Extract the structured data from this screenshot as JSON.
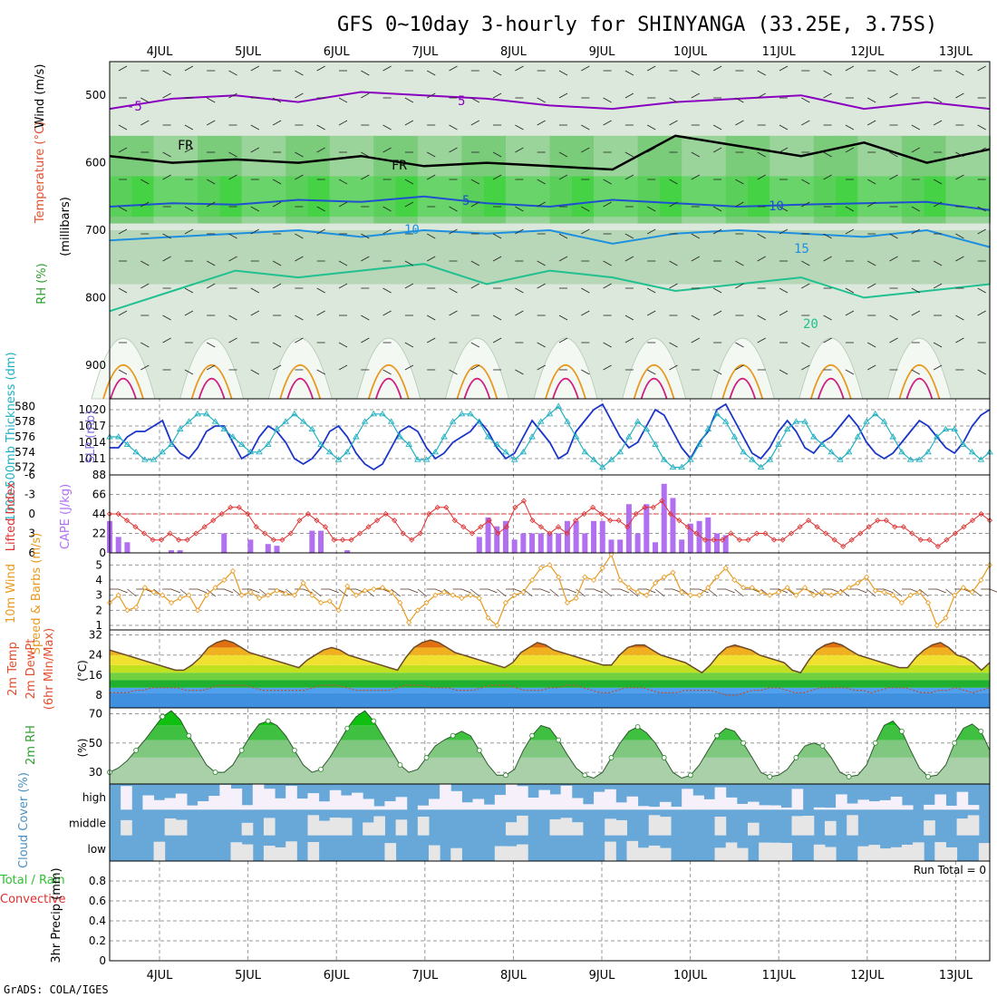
{
  "title": "GFS 0~10day 3-hourly for SHINYANGA (33.25E, 3.75S)",
  "footer": "GrADS: COLA/IGES",
  "dates": [
    "4JUL",
    "5JUL",
    "6JUL",
    "7JUL",
    "8JUL",
    "9JUL",
    "10JUL",
    "11JUL",
    "12JUL",
    "13JUL"
  ],
  "chart_data": [
    {
      "panel": "upper-air",
      "type": "heatmap",
      "ylabel": "(millibars)",
      "ylabels": [
        "RH (%)",
        "Temperature (°C)",
        "Wind (m/s)"
      ],
      "yticks": [
        500,
        600,
        700,
        800,
        900
      ],
      "ylim": [
        950,
        450
      ],
      "contour_labels": [
        "-5",
        "FR",
        "FR",
        "5",
        "5",
        "10",
        "10",
        "15",
        "20"
      ],
      "isotherms": [
        {
          "name": "-5",
          "color": "#8a00c0",
          "p": [
            520,
            505,
            500,
            510,
            495,
            500,
            505,
            515,
            520,
            510,
            505,
            500,
            520,
            510,
            520
          ]
        },
        {
          "name": "FR",
          "color": "#000000",
          "p": [
            590,
            600,
            595,
            600,
            590,
            605,
            600,
            605,
            610,
            560,
            575,
            590,
            570,
            600,
            580
          ]
        },
        {
          "name": "5",
          "color": "#1f50d0",
          "p": [
            665,
            660,
            662,
            655,
            658,
            650,
            660,
            665,
            655,
            660,
            665,
            662,
            660,
            658,
            670
          ]
        },
        {
          "name": "10",
          "color": "#1e90e0",
          "p": [
            715,
            710,
            705,
            700,
            710,
            700,
            705,
            700,
            720,
            705,
            700,
            705,
            710,
            700,
            725
          ]
        },
        {
          "name": "15",
          "color": "#20c090",
          "p": [
            820,
            790,
            760,
            770,
            760,
            750,
            780,
            760,
            770,
            790,
            780,
            770,
            800,
            790,
            780
          ]
        }
      ]
    },
    {
      "panel": "thickness-slp",
      "type": "line",
      "ylabels": [
        "1000-500mb Thickness (dm)",
        "SLP (mb)"
      ],
      "y1ticks": [
        572,
        574,
        576,
        578,
        580
      ],
      "y2ticks": [
        1011,
        1014,
        1017,
        1020
      ],
      "series": [
        {
          "name": "SLP (mb)",
          "color": "#1a35c8",
          "values": [
            1013,
            1013,
            1015,
            1016,
            1016,
            1017,
            1018,
            1014,
            1012,
            1011,
            1013,
            1016,
            1017,
            1017,
            1014,
            1011,
            1012,
            1015,
            1017,
            1016,
            1014,
            1011,
            1010,
            1011,
            1013,
            1016,
            1017,
            1015,
            1012,
            1010,
            1009,
            1010,
            1013,
            1016,
            1017,
            1016,
            1013,
            1011,
            1012,
            1014,
            1015,
            1016,
            1018,
            1016,
            1013,
            1011,
            1012,
            1015,
            1018,
            1016,
            1014,
            1011,
            1012,
            1016,
            1018,
            1020,
            1021,
            1018,
            1015,
            1013,
            1014,
            1017,
            1020,
            1019,
            1016,
            1013,
            1011,
            1014,
            1016,
            1020,
            1021,
            1018,
            1015,
            1012,
            1011,
            1013,
            1016,
            1018,
            1016,
            1013,
            1012,
            1014,
            1015,
            1017,
            1019,
            1017,
            1014,
            1012,
            1011,
            1012,
            1014,
            1016,
            1018,
            1017,
            1015,
            1013,
            1012,
            1014,
            1017,
            1019,
            1020
          ]
        },
        {
          "name": "1000-500mb Thickness (dm)",
          "color": "#20b0c0",
          "marker": "triangle",
          "values": [
            576,
            576,
            575,
            574,
            573,
            573,
            574,
            575,
            577,
            578,
            579,
            579,
            578,
            577,
            576,
            575,
            574,
            574,
            575,
            577,
            578,
            579,
            578,
            577,
            575,
            574,
            573,
            574,
            576,
            578,
            579,
            579,
            578,
            576,
            575,
            573,
            573,
            574,
            576,
            578,
            579,
            579,
            578,
            576,
            575,
            574,
            573,
            574,
            576,
            578,
            579,
            580,
            578,
            576,
            574,
            573,
            572,
            573,
            574,
            576,
            578,
            577,
            575,
            573,
            572,
            572,
            573,
            575,
            577,
            579,
            578,
            576,
            574,
            573,
            572,
            573,
            575,
            577,
            578,
            578,
            576,
            575,
            574,
            573,
            574,
            576,
            578,
            579,
            578,
            576,
            574,
            573,
            573,
            574,
            576,
            577,
            577,
            575,
            574,
            573,
            574
          ]
        }
      ]
    },
    {
      "panel": "lifted-cape",
      "type": "bar",
      "ylabels": [
        "Lifted Index",
        "CAPE (J/kg)"
      ],
      "y1ticks": [
        -6,
        -3,
        0,
        3,
        6
      ],
      "y2ticks": [
        0,
        22,
        44,
        66,
        88
      ],
      "series": [
        {
          "name": "CAPE (J/kg)",
          "color": "#b070f0",
          "values": [
            36,
            18,
            12,
            0,
            0,
            0,
            0,
            3,
            3,
            0,
            0,
            0,
            0,
            22,
            0,
            0,
            15,
            0,
            10,
            8,
            0,
            0,
            0,
            25,
            25,
            0,
            0,
            3,
            0,
            0,
            0,
            0,
            0,
            0,
            0,
            0,
            0,
            0,
            0,
            0,
            0,
            0,
            18,
            40,
            30,
            36,
            15,
            22,
            22,
            22,
            22,
            22,
            36,
            36,
            22,
            36,
            36,
            15,
            15,
            55,
            22,
            55,
            12,
            78,
            62,
            15,
            33,
            36,
            40,
            22,
            20,
            0,
            0,
            0,
            0,
            0,
            0,
            0,
            0,
            0,
            0,
            0,
            0,
            0,
            0,
            0,
            0,
            0,
            0,
            0,
            0,
            0,
            0,
            0,
            0,
            0,
            0,
            0,
            0,
            0,
            0
          ]
        },
        {
          "name": "Lifted Index",
          "color": "#e03030",
          "marker": "diamond",
          "values": [
            0,
            0,
            1,
            2,
            3,
            4,
            4,
            3,
            4,
            4,
            3,
            2,
            1,
            0,
            -1,
            -1,
            0,
            2,
            3,
            4,
            4,
            3,
            1,
            0,
            1,
            2,
            4,
            4,
            4,
            3,
            2,
            1,
            0,
            1,
            3,
            4,
            3,
            0,
            -1,
            -1,
            1,
            2,
            3,
            2,
            1,
            3,
            2,
            -1,
            -2,
            1,
            2,
            3,
            2,
            3,
            1,
            0,
            -1,
            0,
            1,
            1,
            2,
            0,
            -1,
            -1,
            -2,
            0,
            1,
            2,
            3,
            4,
            4,
            4,
            3,
            4,
            4,
            3,
            3,
            4,
            4,
            3,
            2,
            1,
            2,
            3,
            4,
            5,
            4,
            3,
            2,
            1,
            1,
            2,
            2,
            3,
            4,
            4,
            5,
            4,
            3,
            2,
            1,
            0,
            1
          ]
        }
      ]
    },
    {
      "panel": "wind-10m",
      "type": "line",
      "ylabels": [
        "10m Wind",
        "Speed & Barbs (m/s)"
      ],
      "yticks": [
        1,
        2,
        3,
        4,
        5
      ],
      "series": [
        {
          "name": "10m Wind Speed (m/s)",
          "color": "#e89a20",
          "marker": "diamond",
          "values": [
            2.5,
            3.0,
            2.0,
            2.2,
            3.5,
            3.2,
            3.0,
            2.5,
            2.8,
            3.0,
            2.0,
            3.0,
            3.5,
            4.0,
            4.6,
            3.0,
            3.2,
            2.8,
            3.0,
            3.3,
            3.1,
            3.0,
            3.8,
            3.0,
            2.5,
            2.6,
            2.0,
            3.6,
            3.0,
            3.3,
            3.4,
            3.5,
            3.2,
            2.5,
            1.2,
            2.0,
            2.5,
            3.0,
            3.2,
            3.0,
            2.8,
            3.0,
            2.8,
            1.5,
            1.0,
            2.5,
            3.0,
            3.2,
            4.0,
            4.8,
            5.0,
            4.2,
            2.5,
            2.8,
            4.2,
            4.0,
            4.8,
            5.7,
            4.0,
            3.5,
            3.2,
            3.0,
            3.8,
            4.2,
            4.5,
            3.2,
            3.0,
            3.0,
            3.5,
            4.2,
            4.8,
            4.0,
            3.5,
            3.5,
            3.2,
            3.0,
            3.2,
            3.5,
            3.0,
            3.5,
            3.0,
            3.2,
            3.0,
            3.2,
            3.5,
            3.8,
            4.2,
            3.3,
            3.2,
            3.0,
            2.5,
            3.0,
            3.2,
            2.5,
            1.0,
            1.5,
            3.0,
            3.5,
            3.2,
            4.0,
            5.0
          ]
        }
      ]
    },
    {
      "panel": "temp-2m",
      "type": "area",
      "ylabels": [
        "2m Temp",
        "2m DewPt",
        "(6hr Min/Max)"
      ],
      "yunit": "(°C)",
      "yticks": [
        8,
        16,
        24,
        32
      ],
      "series": [
        {
          "name": "2m Temp (°C)",
          "color": "#6b4a2a",
          "values": [
            26,
            25,
            24,
            23,
            22,
            21,
            20,
            19,
            18,
            18,
            20,
            23,
            27,
            29,
            30,
            29,
            27,
            25,
            24,
            23,
            22,
            21,
            20,
            19,
            22,
            24,
            26,
            27,
            26,
            24,
            23,
            22,
            21,
            20,
            19,
            18,
            23,
            27,
            29,
            30,
            29,
            27,
            25,
            24,
            23,
            22,
            21,
            20,
            19,
            21,
            25,
            27,
            29,
            28,
            26,
            25,
            24,
            23,
            22,
            21,
            20,
            20,
            24,
            27,
            28,
            28,
            26,
            24,
            23,
            22,
            21,
            19,
            17,
            20,
            24,
            27,
            28,
            27,
            26,
            24,
            23,
            22,
            21,
            18,
            17,
            22,
            26,
            28,
            29,
            28,
            26,
            24,
            23,
            22,
            21,
            20,
            19,
            19,
            23,
            26,
            28,
            29,
            27,
            24,
            23,
            21,
            18,
            21
          ]
        },
        {
          "name": "2m DewPt (°C)",
          "color": "#c05030",
          "values": [
            9,
            9,
            9,
            10,
            10,
            11,
            11,
            11,
            11,
            10,
            10,
            10,
            11,
            12,
            12,
            12,
            12,
            11,
            10,
            10,
            10,
            10,
            10,
            10,
            11,
            12,
            12,
            12,
            11,
            10,
            10,
            10,
            10,
            10,
            11,
            12,
            12,
            12,
            11,
            11,
            11,
            10,
            10,
            10,
            11,
            12,
            12,
            12,
            11,
            10,
            10,
            10,
            11,
            11,
            12,
            12,
            11,
            10,
            9,
            9,
            10,
            11,
            11,
            11,
            10,
            9,
            9,
            9,
            10,
            10,
            10,
            10,
            9,
            8,
            8,
            9,
            10,
            10,
            11,
            11,
            10,
            9,
            9,
            10,
            11,
            11,
            11,
            11,
            10,
            10,
            9,
            10,
            11,
            11,
            11,
            10,
            9,
            9,
            10,
            10,
            11,
            10,
            9,
            10,
            11
          ]
        }
      ]
    },
    {
      "panel": "rh-2m",
      "type": "area",
      "ylabels": [
        "2m RH"
      ],
      "yunit": "(%)",
      "yticks": [
        30,
        50,
        70
      ],
      "series": [
        {
          "name": "2m RH (%)",
          "color": "#30a030",
          "values": [
            30,
            33,
            38,
            45,
            52,
            60,
            68,
            72,
            66,
            55,
            45,
            35,
            30,
            30,
            35,
            45,
            55,
            63,
            65,
            62,
            55,
            45,
            35,
            30,
            32,
            40,
            50,
            60,
            68,
            72,
            65,
            55,
            45,
            35,
            30,
            32,
            40,
            48,
            52,
            55,
            58,
            55,
            45,
            35,
            28,
            28,
            32,
            45,
            55,
            62,
            60,
            52,
            42,
            33,
            28,
            26,
            30,
            40,
            50,
            58,
            61,
            57,
            50,
            40,
            30,
            26,
            28,
            35,
            45,
            55,
            60,
            58,
            50,
            40,
            30,
            27,
            28,
            32,
            40,
            48,
            50,
            48,
            40,
            30,
            27,
            28,
            35,
            50,
            62,
            65,
            58,
            45,
            33,
            27,
            28,
            35,
            50,
            60,
            63,
            58,
            45
          ]
        }
      ]
    },
    {
      "panel": "cloud-cover",
      "type": "heatmap",
      "ylabels": [
        "Cloud Cover (%)"
      ],
      "rows": [
        "high",
        "middle",
        "low"
      ]
    },
    {
      "panel": "precip",
      "type": "bar",
      "ylabels": [
        "3hr Precip (mm)"
      ],
      "side_labels": [
        "Total / Rain",
        "Convective"
      ],
      "yticks": [
        0,
        0.2,
        0.4,
        0.6,
        0.8
      ],
      "ylim": [
        0,
        1.0
      ],
      "annotation": "Run Total = 0",
      "values": []
    }
  ]
}
